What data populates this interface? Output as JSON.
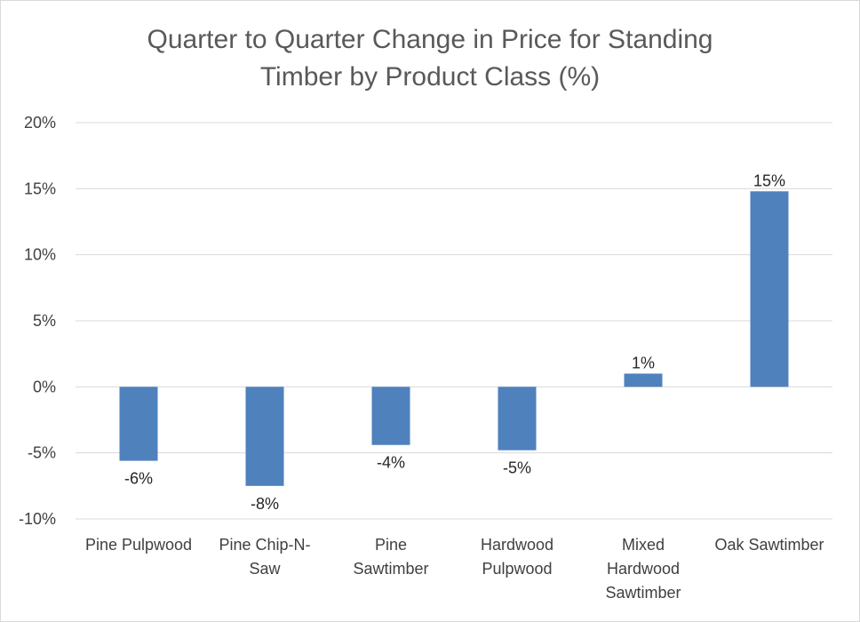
{
  "chart_data": {
    "type": "bar",
    "title_lines": [
      "Quarter to Quarter Change in Price for Standing",
      "Timber by Product Class (%)"
    ],
    "categories": [
      "Pine Pulpwood",
      "Pine Chip-N-Saw",
      "Pine Sawtimber",
      "Hardwood Pulpwood",
      "Mixed Hardwood Sawtimber",
      "Oak Sawtimber"
    ],
    "category_label_lines": [
      [
        "Pine Pulpwood"
      ],
      [
        "Pine Chip-N-",
        "Saw"
      ],
      [
        "Pine",
        "Sawtimber"
      ],
      [
        "Hardwood",
        "Pulpwood"
      ],
      [
        "Mixed",
        "Hardwood",
        "Sawtimber"
      ],
      [
        "Oak Sawtimber"
      ]
    ],
    "values": [
      -5.6,
      -7.5,
      -4.4,
      -4.8,
      1.0,
      14.8
    ],
    "data_labels": [
      "-6%",
      "-8%",
      "-4%",
      "-5%",
      "1%",
      "15%"
    ],
    "ylim": [
      -10,
      20
    ],
    "yticks": [
      20,
      15,
      10,
      5,
      0,
      -5,
      -10
    ],
    "ytick_labels": [
      "20%",
      "15%",
      "10%",
      "5%",
      "0%",
      "-5%",
      "-10%"
    ],
    "grid": true,
    "legend": "none",
    "colors": {
      "bar": "#4f81bd",
      "grid": "#d9d9d9",
      "text": "#404040",
      "title": "#595959"
    }
  }
}
